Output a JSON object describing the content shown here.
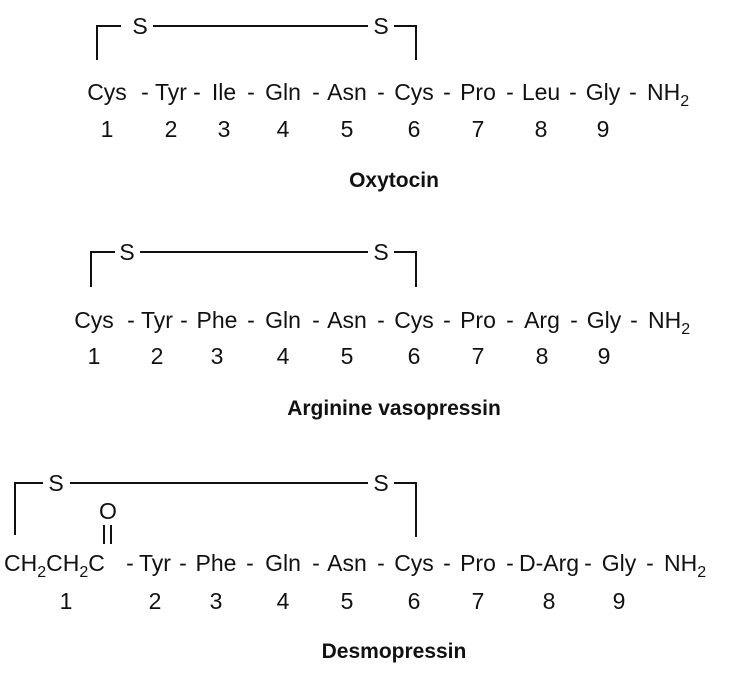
{
  "peptides": [
    {
      "id": "oxytocin",
      "title": "Oxytocin",
      "sequence": [
        "Cys",
        "Tyr",
        "Ile",
        "Gln",
        "Asn",
        "Cys",
        "Pro",
        "Leu",
        "Gly"
      ],
      "c_terminus": {
        "main": "NH",
        "sub": "2"
      },
      "positions": [
        "1",
        "2",
        "3",
        "4",
        "5",
        "6",
        "7",
        "8",
        "9"
      ],
      "bridge": {
        "left_atom": "S",
        "right_atom": "S"
      }
    },
    {
      "id": "arginine-vasopressin",
      "title": "Arginine vasopressin",
      "sequence": [
        "Cys",
        "Tyr",
        "Phe",
        "Gln",
        "Asn",
        "Cys",
        "Pro",
        "Arg",
        "Gly"
      ],
      "c_terminus": {
        "main": "NH",
        "sub": "2"
      },
      "positions": [
        "1",
        "2",
        "3",
        "4",
        "5",
        "6",
        "7",
        "8",
        "9"
      ],
      "bridge": {
        "left_atom": "S",
        "right_atom": "S"
      }
    },
    {
      "id": "desmopressin",
      "title": "Desmopressin",
      "n_terminus": {
        "parts": [
          "CH",
          "2",
          "CH",
          "2",
          "C"
        ],
        "carbonyl_oxygen": "O"
      },
      "sequence": [
        "Tyr",
        "Phe",
        "Gln",
        "Asn",
        "Cys",
        "Pro",
        "D-Arg",
        "Gly"
      ],
      "c_terminus": {
        "main": "NH",
        "sub": "2"
      },
      "positions": [
        "1",
        "2",
        "3",
        "4",
        "5",
        "6",
        "7",
        "8",
        "9"
      ],
      "bridge": {
        "left_atom": "S",
        "right_atom": "S"
      }
    }
  ]
}
